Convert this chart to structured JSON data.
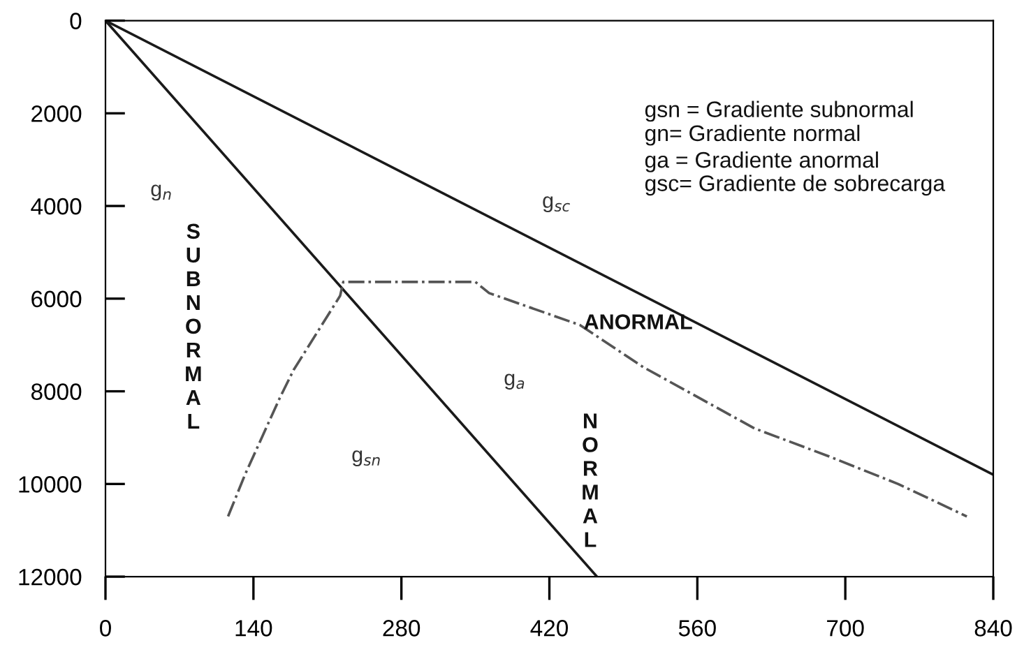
{
  "chart_data": {
    "type": "line",
    "xlim": [
      0,
      840
    ],
    "xticks": [
      0,
      140,
      280,
      420,
      560,
      700,
      840
    ],
    "ylim": [
      12000,
      0
    ],
    "yticks": [
      0,
      2000,
      4000,
      6000,
      8000,
      10000,
      12000
    ],
    "grid": false,
    "legend": false,
    "series": [
      {
        "color": "#1a1a1a",
        "line_style": "solid",
        "x": [
          0,
          465
        ],
        "values": [
          0,
          12000
        ]
      },
      {
        "color": "#1a1a1a",
        "line_style": "solid",
        "x": [
          0,
          840
        ],
        "values": [
          0,
          9800
        ]
      },
      {
        "color": "#555555",
        "line_style": "dashed",
        "x": [
          116,
          132,
          165,
          178,
          222,
          225,
          350,
          363,
          449,
          509,
          614,
          684,
          750,
          815
        ],
        "values": [
          10700,
          9800,
          8140,
          7540,
          5940,
          5640,
          5640,
          5880,
          6570,
          7480,
          8800,
          9400,
          10000,
          10700
        ]
      }
    ],
    "annotations": [
      "g$_{n}$",
      "g$_{sc}$",
      "g$_{a}$",
      "g$_{sn}$",
      "SUBNORMAL",
      "NORMAL",
      "ANORMAL",
      "gsn = Gradiente subnormal",
      "gn= Gradiente normal",
      "ga = Gradiente anormal",
      "gsc= Gradiente de sobrecarga"
    ]
  }
}
